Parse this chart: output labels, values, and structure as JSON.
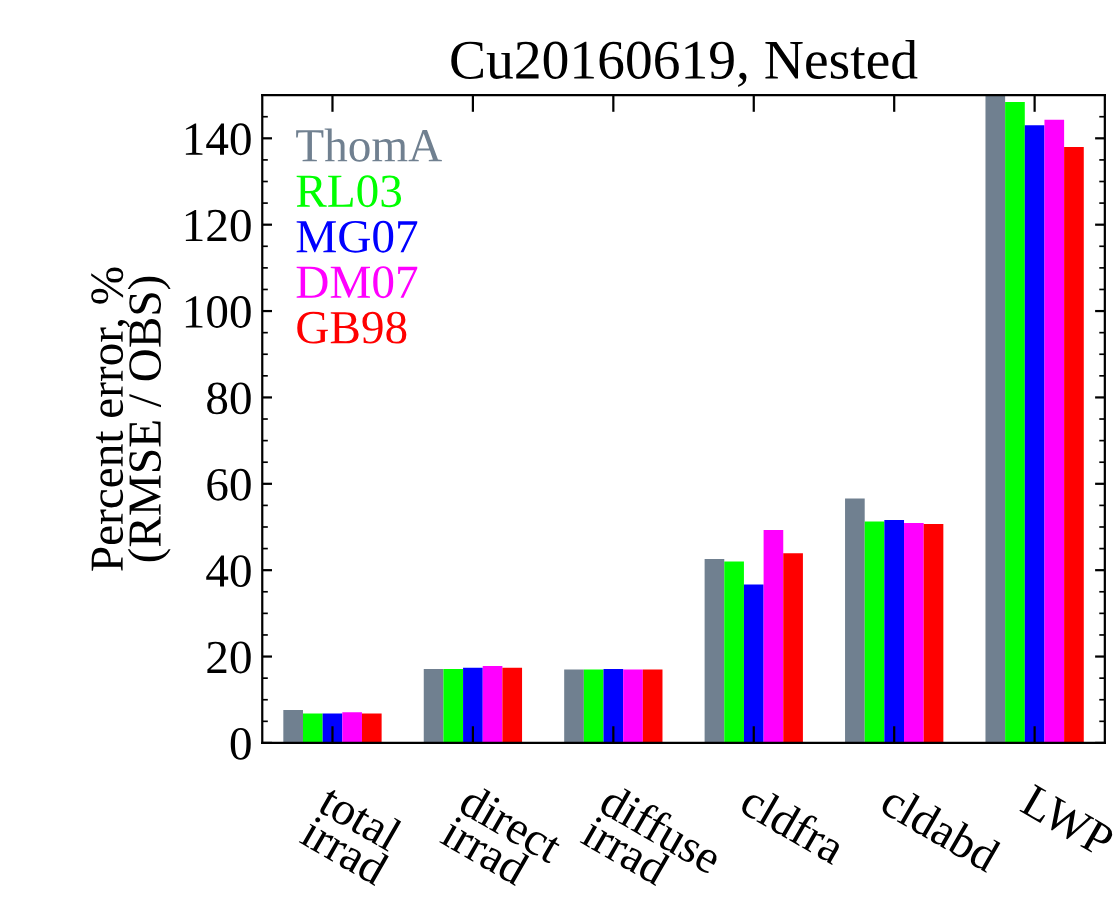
{
  "chart_data": {
    "type": "bar",
    "title": "Cu20160619, Nested",
    "ylabel": "Percent error, %\n(RMSE / OBS)",
    "categories": [
      "total\nirrad",
      "direct\nirrad",
      "diffuse\nirrad",
      "cldfra",
      "cldabd",
      "LWP"
    ],
    "series": [
      {
        "name": "ThomA",
        "color": "#708090",
        "values": [
          7.6,
          17.1,
          17.0,
          42.6,
          56.6,
          150
        ]
      },
      {
        "name": "RL03",
        "color": "#00ff00",
        "values": [
          6.8,
          17.1,
          17.0,
          42.0,
          51.3,
          148.4
        ]
      },
      {
        "name": "MG07",
        "color": "#0000ff",
        "values": [
          6.8,
          17.4,
          17.1,
          36.7,
          51.6,
          143
        ]
      },
      {
        "name": "DM07",
        "color": "#ff00ff",
        "values": [
          7.1,
          17.8,
          17.0,
          49.3,
          50.9,
          144.3
        ]
      },
      {
        "name": "GB98",
        "color": "#ff0000",
        "values": [
          6.8,
          17.4,
          17.0,
          43.9,
          50.7,
          138
        ]
      }
    ],
    "ylim": [
      0,
      150
    ],
    "yticks": [
      0,
      20,
      40,
      60,
      80,
      100,
      120,
      140
    ],
    "grid": false,
    "legend": "top left"
  }
}
